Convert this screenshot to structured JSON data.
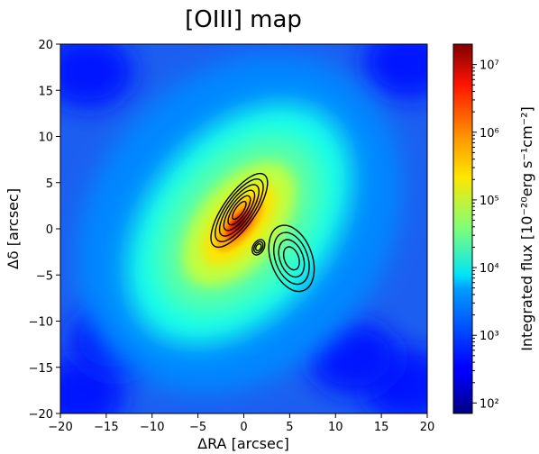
{
  "chart_data": {
    "type": "heatmap",
    "title": "[OIII] map",
    "xlabel": "ΔRA [arcsec]",
    "ylabel": "Δδ [arcsec]",
    "xlim": [
      -20,
      20
    ],
    "ylim": [
      -20,
      20
    ],
    "xticks": [
      -20,
      -15,
      -10,
      -5,
      0,
      5,
      10,
      15,
      20
    ],
    "yticks": [
      -20,
      -15,
      -10,
      -5,
      0,
      5,
      10,
      15,
      20
    ],
    "xtick_labels": [
      "−20",
      "−15",
      "−10",
      "−5",
      "0",
      "5",
      "10",
      "15",
      "20"
    ],
    "ytick_labels": [
      "−20",
      "−15",
      "−10",
      "−5",
      "0",
      "5",
      "10",
      "15",
      "20"
    ],
    "colorbar": {
      "label": "Integrated flux [10⁻²⁰erg s⁻¹cm⁻²]",
      "scale": "log",
      "range": [
        70,
        20000000
      ],
      "ticks": [
        100,
        1000,
        10000,
        100000,
        1000000,
        10000000
      ],
      "tick_labels": [
        "10²",
        "10³",
        "10⁴",
        "10⁵",
        "10⁶",
        "10⁷"
      ],
      "colormap": "jet"
    },
    "emission": {
      "peak_flux": 10000000,
      "peak_position": [
        -0.5,
        0.5
      ],
      "major_axis_angle_deg": 130,
      "halo_flux": 10000,
      "background_flux": 1000
    },
    "contours": {
      "color": "#000000",
      "components": [
        {
          "name": "core",
          "center": [
            -0.5,
            2.0
          ],
          "size": [
            9.5,
            3.5
          ],
          "angle_deg": 125,
          "levels": 6
        },
        {
          "name": "south-east lobe",
          "center": [
            5.2,
            -3.2
          ],
          "size": [
            7.5,
            4.5
          ],
          "angle_deg": 70,
          "levels": 4
        },
        {
          "name": "jet knot",
          "center": [
            1.6,
            -2.0
          ],
          "size": [
            1.8,
            1.2
          ],
          "angle_deg": 120,
          "levels": 3
        }
      ]
    }
  }
}
